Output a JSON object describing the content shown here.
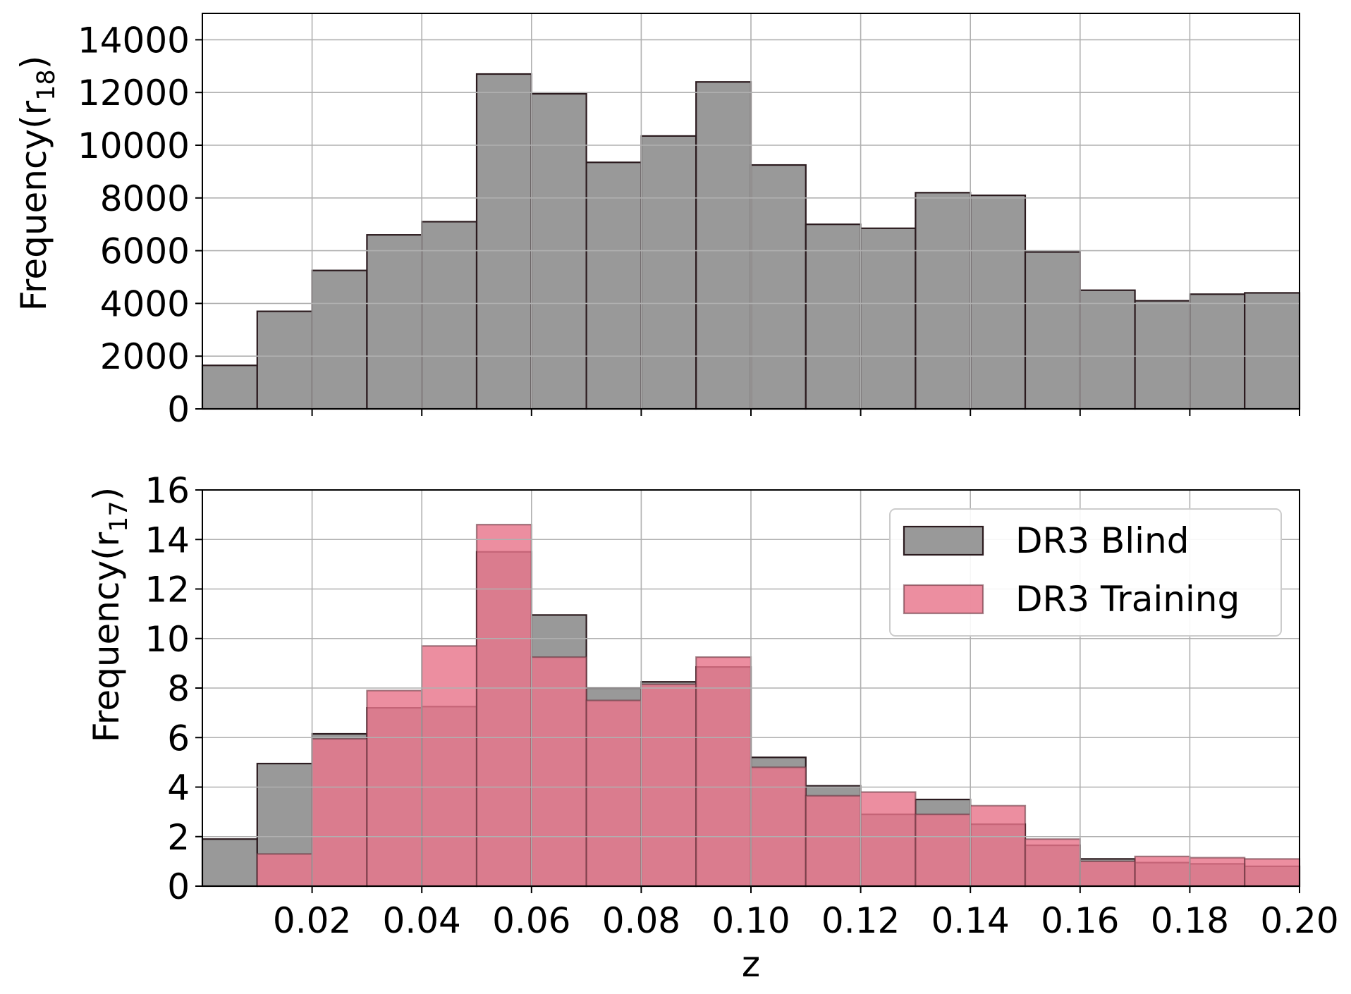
{
  "chart_data": [
    {
      "type": "bar",
      "title": "",
      "xlabel": "",
      "ylabel": "Frequency(r",
      "ylabel_sub": "18",
      "xlim": [
        0,
        0.2
      ],
      "ylim": [
        0,
        15000
      ],
      "yticks": [
        "0",
        "2000",
        "4000",
        "6000",
        "8000",
        "10000",
        "12000",
        "14000"
      ],
      "bin_edges": [
        0,
        0.01,
        0.02,
        0.03,
        0.04,
        0.05,
        0.06,
        0.07,
        0.08,
        0.09,
        0.1,
        0.11,
        0.12,
        0.13,
        0.14,
        0.15,
        0.16,
        0.17,
        0.18,
        0.19,
        0.2
      ],
      "grid": true,
      "series": [
        {
          "color": "#999999",
          "values": [
            1650,
            3700,
            5250,
            6600,
            7100,
            12700,
            11950,
            9350,
            10350,
            12400,
            9250,
            7000,
            6850,
            8200,
            8100,
            5950,
            4500,
            4100,
            4350,
            4400
          ]
        }
      ]
    },
    {
      "type": "bar",
      "title": "",
      "xlabel": "z",
      "ylabel": "Frequency(r",
      "ylabel_sub": "17",
      "xlim": [
        0,
        0.2
      ],
      "ylim": [
        0,
        16
      ],
      "yticks": [
        "0",
        "2",
        "4",
        "6",
        "8",
        "10",
        "12",
        "14",
        "16"
      ],
      "xticks": [
        "0.02",
        "0.04",
        "0.06",
        "0.08",
        "0.10",
        "0.12",
        "0.14",
        "0.16",
        "0.18",
        "0.20"
      ],
      "bin_edges": [
        0,
        0.01,
        0.02,
        0.03,
        0.04,
        0.05,
        0.06,
        0.07,
        0.08,
        0.09,
        0.1,
        0.11,
        0.12,
        0.13,
        0.14,
        0.15,
        0.16,
        0.17,
        0.18,
        0.19,
        0.2
      ],
      "grid": true,
      "legend_position": "upper-right",
      "series": [
        {
          "name": "DR3 Blind",
          "color": "#999999",
          "values": [
            1.9,
            4.95,
            6.15,
            7.2,
            7.25,
            13.5,
            10.95,
            8.0,
            8.25,
            8.85,
            5.2,
            4.05,
            2.9,
            3.5,
            2.5,
            1.65,
            1.1,
            0.95,
            0.9,
            0.8
          ]
        },
        {
          "name": "DR3 Training",
          "color": "#e8758b",
          "values": [
            0,
            1.3,
            5.95,
            7.9,
            9.7,
            14.6,
            9.25,
            7.5,
            8.15,
            9.25,
            4.8,
            3.65,
            3.8,
            2.9,
            3.25,
            1.9,
            1.0,
            1.2,
            1.15,
            1.1
          ]
        }
      ]
    }
  ]
}
